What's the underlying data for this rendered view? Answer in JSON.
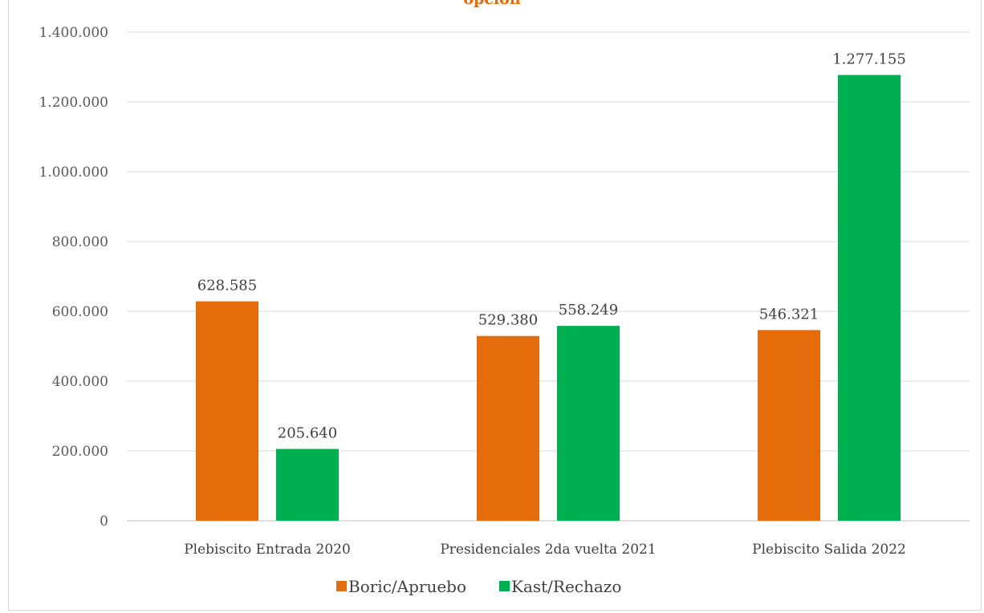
{
  "chart_data": {
    "type": "bar",
    "title": "opción",
    "categories": [
      "Plebiscito Entrada 2020",
      "Presidenciales 2da vuelta 2021",
      "Plebiscito Salida 2022"
    ],
    "series": [
      {
        "name": "Boric/Apruebo",
        "color": "#e46c0a",
        "values": [
          628585,
          529380,
          546321
        ],
        "labels": [
          "628.585",
          "529.380",
          "546.321"
        ]
      },
      {
        "name": "Kast/Rechazo",
        "color": "#00b050",
        "values": [
          205640,
          558249,
          1277155
        ],
        "labels": [
          "205.640",
          "558.249",
          "1.277.155"
        ]
      }
    ],
    "yticks": [
      "0",
      "200.000",
      "400.000",
      "600.000",
      "800.000",
      "1.000.000",
      "1.200.000",
      "1.400.000"
    ],
    "ylim": [
      0,
      1400000
    ],
    "grid": true,
    "legend_position": "bottom"
  }
}
